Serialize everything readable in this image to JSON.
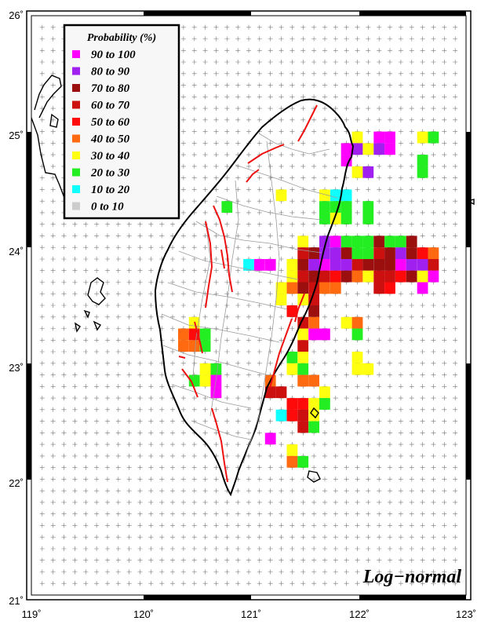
{
  "map": {
    "model_label": "Log−normal",
    "lon_range": [
      119,
      123
    ],
    "lat_range": [
      21,
      26
    ],
    "x_ticks": [
      "119˚",
      "120˚",
      "121˚",
      "122˚",
      "123˚"
    ],
    "y_ticks": [
      "21˚",
      "22˚",
      "23˚",
      "24˚",
      "25˚",
      "26˚"
    ]
  },
  "legend": {
    "title": "Probability (%)",
    "items": [
      {
        "label": "90  to  100",
        "color": "#ff00ff"
      },
      {
        "label": "80  to    90",
        "color": "#a020f0"
      },
      {
        "label": "70  to    80",
        "color": "#9b0f0f"
      },
      {
        "label": "60  to    70",
        "color": "#cc0f0f"
      },
      {
        "label": "50  to    60",
        "color": "#ff0a0a"
      },
      {
        "label": "40  to    50",
        "color": "#ff6a10"
      },
      {
        "label": "30  to    40",
        "color": "#ffff10"
      },
      {
        "label": "20  to    30",
        "color": "#22ee22"
      },
      {
        "label": "10  to    20",
        "color": "#10ffff"
      },
      {
        "label": "0  to    10",
        "color": "#cccccc"
      }
    ]
  },
  "cells": [
    {
      "lon": 122.0,
      "lat": 24.95,
      "bin": 6
    },
    {
      "lon": 122.2,
      "lat": 24.95,
      "bin": 0
    },
    {
      "lon": 122.3,
      "lat": 24.95,
      "bin": 0
    },
    {
      "lon": 122.6,
      "lat": 24.95,
      "bin": 6
    },
    {
      "lon": 122.7,
      "lat": 24.95,
      "bin": 7
    },
    {
      "lon": 121.9,
      "lat": 24.85,
      "bin": 0
    },
    {
      "lon": 122.0,
      "lat": 24.85,
      "bin": 1
    },
    {
      "lon": 122.1,
      "lat": 24.85,
      "bin": 6
    },
    {
      "lon": 122.2,
      "lat": 24.85,
      "bin": 1
    },
    {
      "lon": 122.3,
      "lat": 24.85,
      "bin": 0
    },
    {
      "lon": 121.9,
      "lat": 24.75,
      "bin": 0
    },
    {
      "lon": 122.6,
      "lat": 24.75,
      "bin": 7
    },
    {
      "lon": 122.0,
      "lat": 24.65,
      "bin": 6
    },
    {
      "lon": 122.1,
      "lat": 24.65,
      "bin": 1
    },
    {
      "lon": 122.6,
      "lat": 24.65,
      "bin": 7
    },
    {
      "lon": 121.3,
      "lat": 24.45,
      "bin": 6
    },
    {
      "lon": 121.7,
      "lat": 24.45,
      "bin": 6
    },
    {
      "lon": 121.8,
      "lat": 24.45,
      "bin": 8
    },
    {
      "lon": 121.9,
      "lat": 24.45,
      "bin": 8
    },
    {
      "lon": 120.8,
      "lat": 24.35,
      "bin": 7
    },
    {
      "lon": 121.7,
      "lat": 24.35,
      "bin": 7
    },
    {
      "lon": 121.8,
      "lat": 24.35,
      "bin": 7
    },
    {
      "lon": 121.9,
      "lat": 24.35,
      "bin": 7
    },
    {
      "lon": 122.1,
      "lat": 24.35,
      "bin": 7
    },
    {
      "lon": 121.7,
      "lat": 24.25,
      "bin": 7
    },
    {
      "lon": 121.8,
      "lat": 24.25,
      "bin": 6
    },
    {
      "lon": 121.9,
      "lat": 24.25,
      "bin": 7
    },
    {
      "lon": 122.1,
      "lat": 24.25,
      "bin": 7
    },
    {
      "lon": 121.5,
      "lat": 24.05,
      "bin": 6
    },
    {
      "lon": 121.7,
      "lat": 24.05,
      "bin": 1
    },
    {
      "lon": 121.8,
      "lat": 24.05,
      "bin": 0
    },
    {
      "lon": 121.9,
      "lat": 24.05,
      "bin": 7
    },
    {
      "lon": 122.0,
      "lat": 24.05,
      "bin": 7
    },
    {
      "lon": 122.1,
      "lat": 24.05,
      "bin": 7
    },
    {
      "lon": 122.2,
      "lat": 24.05,
      "bin": 2
    },
    {
      "lon": 122.3,
      "lat": 24.05,
      "bin": 7
    },
    {
      "lon": 122.4,
      "lat": 24.05,
      "bin": 7
    },
    {
      "lon": 122.5,
      "lat": 24.05,
      "bin": 2
    },
    {
      "lon": 121.5,
      "lat": 23.95,
      "bin": 3
    },
    {
      "lon": 121.6,
      "lat": 23.95,
      "bin": 2
    },
    {
      "lon": 121.7,
      "lat": 23.95,
      "bin": 1
    },
    {
      "lon": 121.8,
      "lat": 23.95,
      "bin": 1
    },
    {
      "lon": 121.9,
      "lat": 23.95,
      "bin": 2
    },
    {
      "lon": 122.0,
      "lat": 23.95,
      "bin": 7
    },
    {
      "lon": 122.1,
      "lat": 23.95,
      "bin": 7
    },
    {
      "lon": 122.2,
      "lat": 23.95,
      "bin": 3
    },
    {
      "lon": 122.3,
      "lat": 23.95,
      "bin": 2
    },
    {
      "lon": 122.4,
      "lat": 23.95,
      "bin": 1
    },
    {
      "lon": 122.5,
      "lat": 23.95,
      "bin": 2
    },
    {
      "lon": 122.6,
      "lat": 23.95,
      "bin": 4
    },
    {
      "lon": 122.7,
      "lat": 23.95,
      "bin": 5
    },
    {
      "lon": 121.0,
      "lat": 23.85,
      "bin": 8
    },
    {
      "lon": 121.1,
      "lat": 23.85,
      "bin": 0
    },
    {
      "lon": 121.2,
      "lat": 23.85,
      "bin": 0
    },
    {
      "lon": 121.4,
      "lat": 23.85,
      "bin": 6
    },
    {
      "lon": 121.5,
      "lat": 23.85,
      "bin": 2
    },
    {
      "lon": 121.6,
      "lat": 23.85,
      "bin": 1
    },
    {
      "lon": 121.7,
      "lat": 23.85,
      "bin": 0
    },
    {
      "lon": 121.8,
      "lat": 23.85,
      "bin": 1
    },
    {
      "lon": 121.9,
      "lat": 23.85,
      "bin": 1
    },
    {
      "lon": 122.0,
      "lat": 23.85,
      "bin": 3
    },
    {
      "lon": 122.1,
      "lat": 23.85,
      "bin": 2
    },
    {
      "lon": 122.2,
      "lat": 23.85,
      "bin": 2
    },
    {
      "lon": 122.3,
      "lat": 23.85,
      "bin": 2
    },
    {
      "lon": 122.4,
      "lat": 23.85,
      "bin": 0
    },
    {
      "lon": 122.5,
      "lat": 23.85,
      "bin": 1
    },
    {
      "lon": 122.6,
      "lat": 23.85,
      "bin": 1
    },
    {
      "lon": 122.7,
      "lat": 23.85,
      "bin": 3
    },
    {
      "lon": 121.4,
      "lat": 23.75,
      "bin": 6
    },
    {
      "lon": 121.5,
      "lat": 23.75,
      "bin": 3
    },
    {
      "lon": 121.6,
      "lat": 23.75,
      "bin": 2
    },
    {
      "lon": 121.7,
      "lat": 23.75,
      "bin": 3
    },
    {
      "lon": 121.8,
      "lat": 23.75,
      "bin": 4
    },
    {
      "lon": 121.9,
      "lat": 23.75,
      "bin": 2
    },
    {
      "lon": 122.0,
      "lat": 23.75,
      "bin": 5
    },
    {
      "lon": 122.1,
      "lat": 23.75,
      "bin": 6
    },
    {
      "lon": 122.2,
      "lat": 23.75,
      "bin": 3
    },
    {
      "lon": 122.3,
      "lat": 23.75,
      "bin": 3
    },
    {
      "lon": 122.4,
      "lat": 23.75,
      "bin": 4
    },
    {
      "lon": 122.5,
      "lat": 23.75,
      "bin": 2
    },
    {
      "lon": 122.6,
      "lat": 23.75,
      "bin": 6
    },
    {
      "lon": 122.7,
      "lat": 23.75,
      "bin": 0
    },
    {
      "lon": 121.3,
      "lat": 23.65,
      "bin": 6
    },
    {
      "lon": 121.4,
      "lat": 23.65,
      "bin": 5
    },
    {
      "lon": 121.5,
      "lat": 23.65,
      "bin": 2
    },
    {
      "lon": 121.6,
      "lat": 23.65,
      "bin": 3
    },
    {
      "lon": 121.7,
      "lat": 23.65,
      "bin": 5
    },
    {
      "lon": 121.8,
      "lat": 23.65,
      "bin": 5
    },
    {
      "lon": 122.2,
      "lat": 23.65,
      "bin": 3
    },
    {
      "lon": 122.3,
      "lat": 23.65,
      "bin": 4
    },
    {
      "lon": 122.6,
      "lat": 23.65,
      "bin": 0
    },
    {
      "lon": 121.3,
      "lat": 23.55,
      "bin": 6
    },
    {
      "lon": 121.5,
      "lat": 23.55,
      "bin": 6
    },
    {
      "lon": 121.6,
      "lat": 23.55,
      "bin": 3
    },
    {
      "lon": 121.4,
      "lat": 23.45,
      "bin": 4
    },
    {
      "lon": 121.6,
      "lat": 23.45,
      "bin": 2
    },
    {
      "lon": 121.5,
      "lat": 23.35,
      "bin": 3
    },
    {
      "lon": 121.6,
      "lat": 23.35,
      "bin": 5
    },
    {
      "lon": 121.9,
      "lat": 23.35,
      "bin": 6
    },
    {
      "lon": 122.0,
      "lat": 23.35,
      "bin": 5
    },
    {
      "lon": 120.5,
      "lat": 23.35,
      "bin": 6
    },
    {
      "lon": 121.5,
      "lat": 23.25,
      "bin": 6
    },
    {
      "lon": 121.6,
      "lat": 23.25,
      "bin": 0
    },
    {
      "lon": 121.7,
      "lat": 23.25,
      "bin": 0
    },
    {
      "lon": 122.0,
      "lat": 23.25,
      "bin": 7
    },
    {
      "lon": 120.4,
      "lat": 23.25,
      "bin": 5
    },
    {
      "lon": 120.5,
      "lat": 23.25,
      "bin": 4
    },
    {
      "lon": 120.6,
      "lat": 23.25,
      "bin": 7
    },
    {
      "lon": 120.4,
      "lat": 23.15,
      "bin": 5
    },
    {
      "lon": 120.5,
      "lat": 23.15,
      "bin": 5
    },
    {
      "lon": 120.6,
      "lat": 23.15,
      "bin": 7
    },
    {
      "lon": 121.5,
      "lat": 23.15,
      "bin": 3
    },
    {
      "lon": 121.4,
      "lat": 23.05,
      "bin": 7
    },
    {
      "lon": 121.5,
      "lat": 23.05,
      "bin": 6
    },
    {
      "lon": 122.0,
      "lat": 23.05,
      "bin": 6
    },
    {
      "lon": 120.6,
      "lat": 22.95,
      "bin": 6
    },
    {
      "lon": 120.7,
      "lat": 22.95,
      "bin": 7
    },
    {
      "lon": 121.4,
      "lat": 22.95,
      "bin": 6
    },
    {
      "lon": 121.5,
      "lat": 22.95,
      "bin": 7
    },
    {
      "lon": 122.0,
      "lat": 22.95,
      "bin": 6
    },
    {
      "lon": 122.1,
      "lat": 22.95,
      "bin": 6
    },
    {
      "lon": 120.5,
      "lat": 22.85,
      "bin": 7
    },
    {
      "lon": 120.6,
      "lat": 22.85,
      "bin": 6
    },
    {
      "lon": 120.7,
      "lat": 22.85,
      "bin": 0
    },
    {
      "lon": 121.2,
      "lat": 22.85,
      "bin": 5
    },
    {
      "lon": 121.5,
      "lat": 22.85,
      "bin": 5
    },
    {
      "lon": 121.6,
      "lat": 22.85,
      "bin": 5
    },
    {
      "lon": 121.2,
      "lat": 22.75,
      "bin": 3
    },
    {
      "lon": 121.3,
      "lat": 22.75,
      "bin": 3
    },
    {
      "lon": 121.7,
      "lat": 22.75,
      "bin": 6
    },
    {
      "lon": 120.7,
      "lat": 22.75,
      "bin": 0
    },
    {
      "lon": 121.4,
      "lat": 22.65,
      "bin": 4
    },
    {
      "lon": 121.5,
      "lat": 22.65,
      "bin": 4
    },
    {
      "lon": 121.6,
      "lat": 22.65,
      "bin": 6
    },
    {
      "lon": 121.7,
      "lat": 22.65,
      "bin": 7
    },
    {
      "lon": 121.3,
      "lat": 22.55,
      "bin": 8
    },
    {
      "lon": 121.4,
      "lat": 22.55,
      "bin": 4
    },
    {
      "lon": 121.5,
      "lat": 22.55,
      "bin": 3
    },
    {
      "lon": 121.6,
      "lat": 22.55,
      "bin": 6
    },
    {
      "lon": 121.5,
      "lat": 22.45,
      "bin": 3
    },
    {
      "lon": 121.6,
      "lat": 22.45,
      "bin": 7
    },
    {
      "lon": 121.2,
      "lat": 22.35,
      "bin": 0
    },
    {
      "lon": 121.4,
      "lat": 22.25,
      "bin": 6
    },
    {
      "lon": 121.4,
      "lat": 22.15,
      "bin": 5
    },
    {
      "lon": 121.5,
      "lat": 22.15,
      "bin": 7
    }
  ]
}
